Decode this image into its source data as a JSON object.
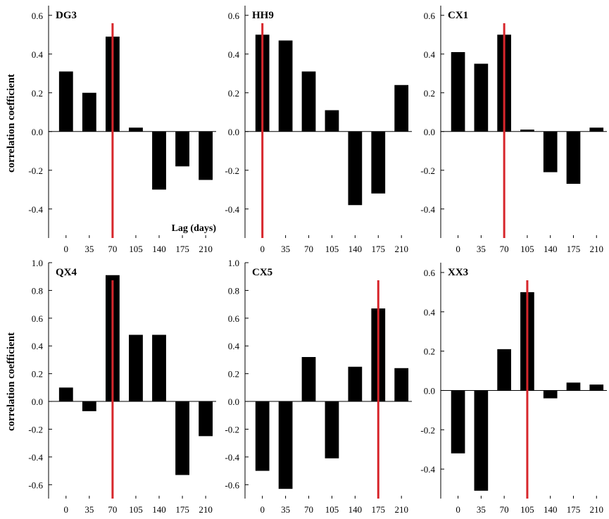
{
  "figure": {
    "ylabel_top": "correlation coefficient",
    "ylabel_bottom": "correlation coefficient",
    "xlabel": "Lag (days)"
  },
  "chart_data": [
    {
      "type": "bar",
      "panel": "DG3",
      "categories": [
        "0",
        "35",
        "70",
        "105",
        "140",
        "175",
        "210"
      ],
      "values": [
        0.31,
        0.2,
        0.49,
        0.02,
        -0.3,
        -0.18,
        -0.25
      ],
      "ylim": [
        -0.55,
        0.65
      ],
      "yticks": [
        -0.4,
        -0.2,
        0.0,
        0.2,
        0.4,
        0.6
      ],
      "highlight_lag": "70",
      "xlabel": "Lag (days)",
      "ylabel": "correlation coefficient"
    },
    {
      "type": "bar",
      "panel": "HH9",
      "categories": [
        "0",
        "35",
        "70",
        "105",
        "140",
        "175",
        "210"
      ],
      "values": [
        0.5,
        0.47,
        0.31,
        0.11,
        -0.38,
        -0.32,
        0.24
      ],
      "ylim": [
        -0.55,
        0.65
      ],
      "yticks": [
        -0.4,
        -0.2,
        0.0,
        0.2,
        0.4,
        0.6
      ],
      "highlight_lag": "0",
      "xlabel": "",
      "ylabel": ""
    },
    {
      "type": "bar",
      "panel": "CX1",
      "categories": [
        "0",
        "35",
        "70",
        "105",
        "140",
        "175",
        "210"
      ],
      "values": [
        0.41,
        0.35,
        0.5,
        0.01,
        -0.21,
        -0.27,
        0.02
      ],
      "ylim": [
        -0.55,
        0.65
      ],
      "yticks": [
        -0.4,
        -0.2,
        0.0,
        0.2,
        0.4,
        0.6
      ],
      "highlight_lag": "70",
      "xlabel": "",
      "ylabel": ""
    },
    {
      "type": "bar",
      "panel": "QX4",
      "categories": [
        "0",
        "35",
        "70",
        "105",
        "140",
        "175",
        "210"
      ],
      "values": [
        0.1,
        -0.07,
        0.91,
        0.48,
        0.48,
        -0.53,
        -0.25
      ],
      "ylim": [
        -0.7,
        1.0
      ],
      "yticks": [
        -0.6,
        -0.4,
        -0.2,
        0.0,
        0.2,
        0.4,
        0.6,
        0.8,
        1.0
      ],
      "highlight_lag": "70",
      "xlabel": "",
      "ylabel": "correlation coefficient"
    },
    {
      "type": "bar",
      "panel": "CX5",
      "categories": [
        "0",
        "35",
        "70",
        "105",
        "140",
        "175",
        "210"
      ],
      "values": [
        -0.5,
        -0.63,
        0.32,
        -0.41,
        0.25,
        0.67,
        0.24
      ],
      "ylim": [
        -0.7,
        1.0
      ],
      "yticks": [
        -0.6,
        -0.4,
        -0.2,
        0.0,
        0.2,
        0.4,
        0.6,
        0.8,
        1.0
      ],
      "highlight_lag": "175",
      "xlabel": "",
      "ylabel": ""
    },
    {
      "type": "bar",
      "panel": "XX3",
      "categories": [
        "0",
        "35",
        "70",
        "105",
        "140",
        "175",
        "210"
      ],
      "values": [
        -0.32,
        -0.51,
        0.21,
        0.5,
        -0.04,
        0.04,
        0.03
      ],
      "ylim": [
        -0.55,
        0.65
      ],
      "yticks": [
        -0.4,
        -0.2,
        0.0,
        0.2,
        0.4,
        0.6
      ],
      "highlight_lag": "105",
      "xlabel": "",
      "ylabel": ""
    }
  ],
  "colors": {
    "bar": "#000000",
    "highlight_line": "#d7262b",
    "axis": "#000000"
  }
}
